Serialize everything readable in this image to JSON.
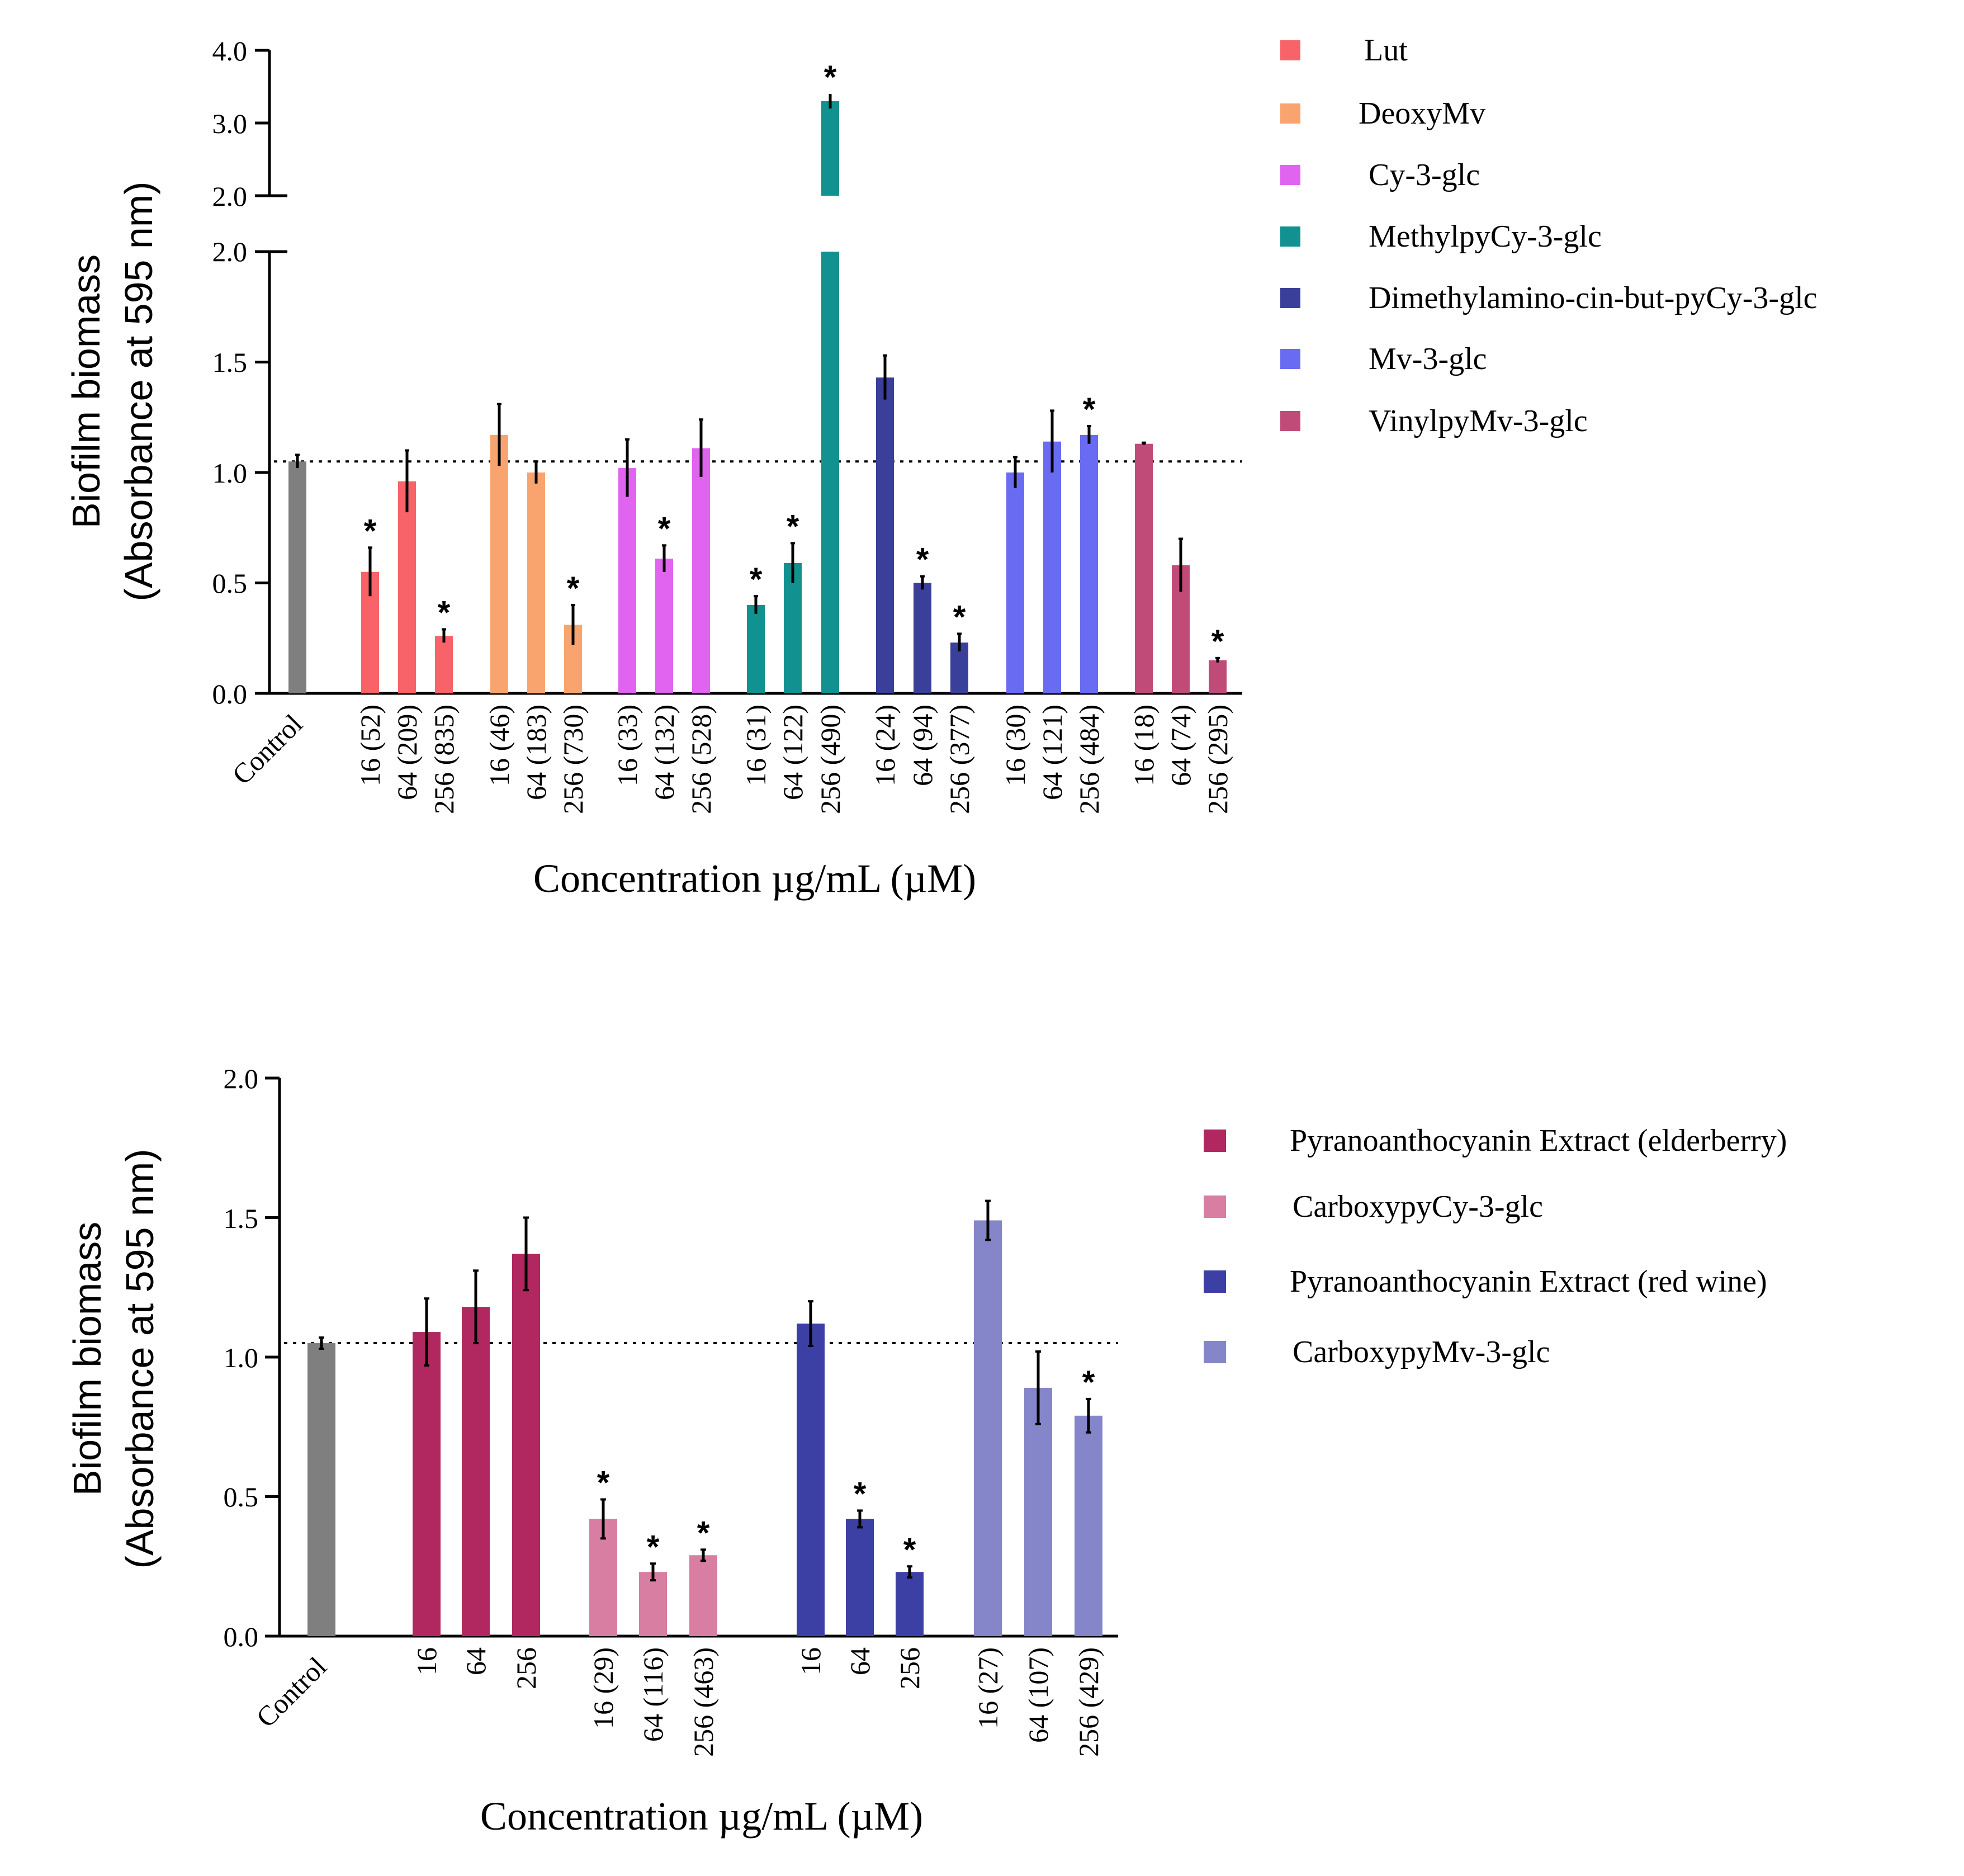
{
  "charts": [
    {
      "type": "bar",
      "y_axis_title_line1": "Biofilm biomass",
      "y_axis_title_line2": "(Absorbance at 595 nm)",
      "xlabel": "Concentration µg/mL (µM)",
      "y_ticks_lower": [
        "0.0",
        "0.5",
        "1.0",
        "1.5",
        "2.0"
      ],
      "y_ticks_upper": [
        "2.0",
        "3.0",
        "4.0"
      ],
      "reference_line": 1.05,
      "legend": [
        {
          "label": "Lut",
          "color": "#f8636a"
        },
        {
          "label": "DeoxyMv",
          "color": "#f9a46e"
        },
        {
          "label": "Cy-3-glc",
          "color": "#e064ef"
        },
        {
          "label": "MethylpyCy-3-glc",
          "color": "#11918f"
        },
        {
          "label": "Dimethylamino-cin-but-pyCy-3-glc",
          "color": "#3a3f9a"
        },
        {
          "label": "Mv-3-glc",
          "color": "#6a6bf3"
        },
        {
          "label": "VinylpyMv-3-glc",
          "color": "#c04b78"
        }
      ]
    },
    {
      "type": "bar",
      "y_axis_title_line1": "Biofilm biomass",
      "y_axis_title_line2": "(Absorbance at 595 nm)",
      "xlabel": "Concentration µg/mL (µM)",
      "y_ticks": [
        "0.0",
        "0.5",
        "1.0",
        "1.5",
        "2.0"
      ],
      "reference_line": 1.05,
      "legend": [
        {
          "label": "Pyranoanthocyanin Extract (elderberry)",
          "color": "#b0285f"
        },
        {
          "label": "CarboxypyCy-3-glc",
          "color": "#d77ea2"
        },
        {
          "label": "Pyranoanthocyanin Extract (red wine)",
          "color": "#3c3fa3"
        },
        {
          "label": "CarboxypyMv-3-glc",
          "color": "#8585c9"
        }
      ]
    }
  ],
  "chart_data": [
    {
      "type": "bar",
      "title": "",
      "xlabel": "Concentration µg/mL (µM)",
      "ylabel": "Biofilm biomass (Absorbance at 595 nm)",
      "ylim": [
        0,
        4.0
      ],
      "y_axis_break": [
        2.0,
        2.0
      ],
      "reference_line": 1.05,
      "bars": [
        {
          "label": "Control",
          "series": "Control",
          "value": 1.05,
          "error": 0.03,
          "sig": "",
          "color": "#7f7f7f"
        },
        {
          "label": "16 (52)",
          "series": "Lut",
          "value": 0.55,
          "error": 0.11,
          "sig": "*",
          "color": "#f8636a"
        },
        {
          "label": "64 (209)",
          "series": "Lut",
          "value": 0.96,
          "error": 0.14,
          "sig": "",
          "color": "#f8636a"
        },
        {
          "label": "256 (835)",
          "series": "Lut",
          "value": 0.26,
          "error": 0.03,
          "sig": "*",
          "color": "#f8636a"
        },
        {
          "label": "16 (46)",
          "series": "DeoxyMv",
          "value": 1.17,
          "error": 0.14,
          "sig": "",
          "color": "#f9a46e"
        },
        {
          "label": "64 (183)",
          "series": "DeoxyMv",
          "value": 1.0,
          "error": 0.05,
          "sig": "",
          "color": "#f9a46e"
        },
        {
          "label": "256 (730)",
          "series": "DeoxyMv",
          "value": 0.31,
          "error": 0.09,
          "sig": "*",
          "color": "#f9a46e"
        },
        {
          "label": "16 (33)",
          "series": "Cy-3-glc",
          "value": 1.02,
          "error": 0.13,
          "sig": "",
          "color": "#e064ef"
        },
        {
          "label": "64 (132)",
          "series": "Cy-3-glc",
          "value": 0.61,
          "error": 0.06,
          "sig": "*",
          "color": "#e064ef"
        },
        {
          "label": "256 (528)",
          "series": "Cy-3-glc",
          "value": 1.11,
          "error": 0.13,
          "sig": "",
          "color": "#e064ef"
        },
        {
          "label": "16 (31)",
          "series": "MethylpyCy-3-glc",
          "value": 0.4,
          "error": 0.04,
          "sig": "*",
          "color": "#11918f"
        },
        {
          "label": "64 (122)",
          "series": "MethylpyCy-3-glc",
          "value": 0.59,
          "error": 0.09,
          "sig": "*",
          "color": "#11918f"
        },
        {
          "label": "256 (490)",
          "series": "MethylpyCy-3-glc",
          "value": 3.3,
          "error": 0.1,
          "sig": "*",
          "color": "#11918f"
        },
        {
          "label": "16 (24)",
          "series": "Dimethylamino-cin-but-pyCy-3-glc",
          "value": 1.43,
          "error": 0.1,
          "sig": "",
          "color": "#3a3f9a"
        },
        {
          "label": "64 (94)",
          "series": "Dimethylamino-cin-but-pyCy-3-glc",
          "value": 0.5,
          "error": 0.03,
          "sig": "*",
          "color": "#3a3f9a"
        },
        {
          "label": "256 (377)",
          "series": "Dimethylamino-cin-but-pyCy-3-glc",
          "value": 0.23,
          "error": 0.04,
          "sig": "*",
          "color": "#3a3f9a"
        },
        {
          "label": "16 (30)",
          "series": "Mv-3-glc",
          "value": 1.0,
          "error": 0.07,
          "sig": "",
          "color": "#6a6bf3"
        },
        {
          "label": "64 (121)",
          "series": "Mv-3-glc",
          "value": 1.14,
          "error": 0.14,
          "sig": "",
          "color": "#6a6bf3"
        },
        {
          "label": "256 (484)",
          "series": "Mv-3-glc",
          "value": 1.17,
          "error": 0.04,
          "sig": "*",
          "color": "#6a6bf3"
        },
        {
          "label": "16 (18)",
          "series": "VinylpyMv-3-glc",
          "value": 1.13,
          "error": 0.005,
          "sig": "",
          "color": "#c04b78"
        },
        {
          "label": "64 (74)",
          "series": "VinylpyMv-3-glc",
          "value": 0.58,
          "error": 0.12,
          "sig": "",
          "color": "#c04b78"
        },
        {
          "label": "256 (295)",
          "series": "VinylpyMv-3-glc",
          "value": 0.15,
          "error": 0.01,
          "sig": "*",
          "color": "#c04b78"
        }
      ]
    },
    {
      "type": "bar",
      "title": "",
      "xlabel": "Concentration µg/mL (µM)",
      "ylabel": "Biofilm biomass (Absorbance at 595 nm)",
      "ylim": [
        0,
        2.0
      ],
      "reference_line": 1.05,
      "bars": [
        {
          "label": "Control",
          "series": "Control",
          "value": 1.05,
          "error": 0.02,
          "sig": "",
          "color": "#7f7f7f"
        },
        {
          "label": "16",
          "series": "Pyranoanthocyanin Extract (elderberry)",
          "value": 1.09,
          "error": 0.12,
          "sig": "",
          "color": "#b0285f"
        },
        {
          "label": "64",
          "series": "Pyranoanthocyanin Extract (elderberry)",
          "value": 1.18,
          "error": 0.13,
          "sig": "",
          "color": "#b0285f"
        },
        {
          "label": "256",
          "series": "Pyranoanthocyanin Extract (elderberry)",
          "value": 1.37,
          "error": 0.13,
          "sig": "",
          "color": "#b0285f"
        },
        {
          "label": "16 (29)",
          "series": "CarboxypyCy-3-glc",
          "value": 0.42,
          "error": 0.07,
          "sig": "*",
          "color": "#d77ea2"
        },
        {
          "label": "64 (116)",
          "series": "CarboxypyCy-3-glc",
          "value": 0.23,
          "error": 0.03,
          "sig": "*",
          "color": "#d77ea2"
        },
        {
          "label": "256 (463)",
          "series": "CarboxypyCy-3-glc",
          "value": 0.29,
          "error": 0.02,
          "sig": "*",
          "color": "#d77ea2"
        },
        {
          "label": "16",
          "series": "Pyranoanthocyanin Extract (red wine)",
          "value": 1.12,
          "error": 0.08,
          "sig": "",
          "color": "#3c3fa3"
        },
        {
          "label": "64",
          "series": "Pyranoanthocyanin Extract (red wine)",
          "value": 0.42,
          "error": 0.03,
          "sig": "*",
          "color": "#3c3fa3"
        },
        {
          "label": "256",
          "series": "Pyranoanthocyanin Extract (red wine)",
          "value": 0.23,
          "error": 0.02,
          "sig": "*",
          "color": "#3c3fa3"
        },
        {
          "label": "16 (27)",
          "series": "CarboxypyMv-3-glc",
          "value": 1.49,
          "error": 0.07,
          "sig": "",
          "color": "#8585c9"
        },
        {
          "label": "64 (107)",
          "series": "CarboxypyMv-3-glc",
          "value": 0.89,
          "error": 0.13,
          "sig": "",
          "color": "#8585c9"
        },
        {
          "label": "256 (429)",
          "series": "CarboxypyMv-3-glc",
          "value": 0.79,
          "error": 0.06,
          "sig": "*",
          "color": "#8585c9"
        }
      ]
    }
  ]
}
